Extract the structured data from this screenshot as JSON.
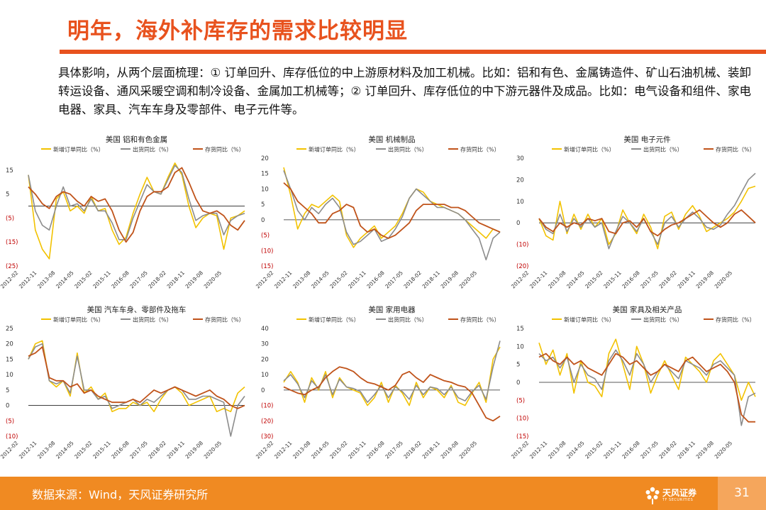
{
  "slide": {
    "title": "明年，海外补库存的需求比较明显",
    "description": "具体影响，从两个层面梳理：① 订单回升、库存低位的中上游原材料及加工机械。比如：铝和有色、金属铸造件、矿山石油机械、装卸转运设备、通风采暖空调和制冷设备、金属加工机械等；② 订单回升、库存低位的中下游元器件及成品。比如：电气设备和组件、家电电器、家具、汽车车身及零部件、电子元件等。",
    "source": "数据来源：Wind，天风证券研究所",
    "logo_text": "天风证券",
    "logo_sub": "TF SECURITIES",
    "page_number": "31"
  },
  "colors": {
    "accent": "#E8521E",
    "footer": "#F08A22",
    "orders": "#F2C200",
    "shipments": "#8C8C8C",
    "inventory": "#C0531A",
    "negative_tick": "#C00000"
  },
  "legend_labels": [
    "新增订单同比（%）",
    "出货同比（%）",
    "存货同比（%）"
  ],
  "x_tick_labels": [
    "2012-02",
    "2012-11",
    "2013-08",
    "2014-05",
    "2015-02",
    "2015-11",
    "2016-08",
    "2017-05",
    "2018-02",
    "2018-11",
    "2019-08",
    "2020-05"
  ],
  "chart_data": [
    {
      "type": "line",
      "title": "美国 铝和有色金属",
      "yticks": [
        15,
        5,
        -5,
        -15,
        -25
      ],
      "ytick_labels": [
        "15",
        "5",
        "(5)",
        "(15)",
        "(25)"
      ],
      "ylim": [
        -25,
        20
      ],
      "series": [
        {
          "name": "新增订单同比（%）",
          "values": [
            13,
            -10,
            -18,
            -22,
            3,
            6,
            -2,
            0,
            -3,
            4,
            -2,
            -1,
            -10,
            -16,
            -13,
            -3,
            5,
            12,
            6,
            5,
            12,
            18,
            13,
            0,
            -9,
            -5,
            -3,
            -4,
            -18,
            -5,
            -4,
            -2
          ]
        },
        {
          "name": "出货同比（%）",
          "values": [
            13,
            -2,
            -8,
            -10,
            0,
            8,
            0,
            1,
            -2,
            3,
            -2,
            -2,
            -7,
            -14,
            -14,
            -5,
            2,
            9,
            6,
            5,
            11,
            17,
            14,
            3,
            -6,
            -4,
            -3,
            -3,
            -12,
            -6,
            -4,
            -3
          ]
        },
        {
          "name": "存货同比（%）",
          "values": [
            8,
            5,
            1,
            -1,
            4,
            6,
            5,
            2,
            0,
            4,
            2,
            3,
            -2,
            -10,
            -15,
            -11,
            -2,
            4,
            6,
            6,
            8,
            14,
            16,
            10,
            3,
            -2,
            -3,
            -2,
            -4,
            -8,
            -10,
            -6
          ]
        }
      ]
    },
    {
      "type": "line",
      "title": "美国 机械制品",
      "yticks": [
        20,
        15,
        10,
        5,
        0,
        -5,
        -10,
        -15
      ],
      "ytick_labels": [
        "20",
        "15",
        "10",
        "5",
        "0",
        "(5)",
        "(10)",
        "(15)"
      ],
      "ylim": [
        -15,
        20
      ],
      "series": [
        {
          "name": "新增订单同比（%）",
          "values": [
            17,
            8,
            -3,
            2,
            5,
            4,
            6,
            8,
            6,
            -5,
            -9,
            -6,
            -4,
            -2,
            -6,
            -4,
            -2,
            2,
            7,
            10,
            9,
            6,
            5,
            4,
            3,
            2,
            0,
            -2,
            -4,
            -6,
            -3,
            -4
          ]
        },
        {
          "name": "出货同比（%）",
          "values": [
            16,
            10,
            3,
            0,
            4,
            2,
            5,
            7,
            4,
            -4,
            -8,
            -7,
            -5,
            -3,
            -7,
            -6,
            -3,
            1,
            7,
            10,
            8,
            6,
            4,
            4,
            3,
            2,
            0,
            -3,
            -6,
            -13,
            -6,
            -4
          ]
        },
        {
          "name": "存货同比（%）",
          "values": [
            12,
            10,
            6,
            4,
            2,
            -1,
            -1,
            2,
            3,
            5,
            4,
            -2,
            -4,
            -3,
            -5,
            -6,
            -5,
            -3,
            -1,
            3,
            5,
            5,
            5,
            5,
            4,
            4,
            3,
            1,
            -1,
            -2,
            -3,
            -4
          ]
        }
      ]
    },
    {
      "type": "line",
      "title": "美国 电子元件",
      "yticks": [
        30,
        20,
        10,
        0,
        -10,
        -20
      ],
      "ytick_labels": [
        "30",
        "20",
        "10",
        "0",
        "(10)",
        "(20)"
      ],
      "ylim": [
        -20,
        30
      ],
      "series": [
        {
          "name": "新增订单同比（%）",
          "values": [
            2,
            -6,
            -8,
            10,
            -5,
            4,
            -3,
            4,
            -2,
            2,
            -10,
            -5,
            6,
            0,
            -5,
            4,
            -2,
            -12,
            3,
            5,
            -3,
            4,
            8,
            3,
            -4,
            -2,
            0,
            2,
            5,
            10,
            16,
            17
          ]
        },
        {
          "name": "出货同比（%）",
          "values": [
            2,
            -3,
            -5,
            4,
            -4,
            2,
            -2,
            2,
            -2,
            0,
            -12,
            -4,
            3,
            0,
            -4,
            2,
            -4,
            -10,
            0,
            3,
            -2,
            2,
            5,
            2,
            -2,
            -3,
            -1,
            4,
            8,
            14,
            20,
            23
          ]
        },
        {
          "name": "存货同比（%）",
          "values": [
            2,
            -2,
            -4,
            0,
            -2,
            0,
            -1,
            2,
            1,
            2,
            -4,
            -5,
            0,
            1,
            -2,
            2,
            -4,
            -6,
            -3,
            -1,
            0,
            2,
            4,
            6,
            3,
            0,
            -2,
            0,
            4,
            6,
            3,
            0
          ]
        }
      ]
    },
    {
      "type": "line",
      "title": "美国 汽车车身、零部件及拖车",
      "yticks": [
        25,
        20,
        15,
        10,
        5,
        0,
        -5,
        -10
      ],
      "ytick_labels": [
        "25",
        "20",
        "15",
        "10",
        "5",
        "0",
        "(5)",
        "(10)"
      ],
      "ylim": [
        -10,
        25
      ],
      "series": [
        {
          "name": "新增订单同比（%）",
          "values": [
            15,
            20,
            21,
            8,
            6,
            8,
            3,
            17,
            4,
            6,
            2,
            4,
            -2,
            -1,
            -1,
            1,
            0,
            1,
            -2,
            2,
            5,
            6,
            4,
            0,
            1,
            2,
            3,
            -2,
            -1,
            -2,
            4,
            6
          ]
        },
        {
          "name": "出货同比（%）",
          "values": [
            15,
            19,
            20,
            8,
            7,
            8,
            4,
            16,
            5,
            5,
            2,
            3,
            -1,
            0,
            1,
            2,
            0,
            2,
            1,
            3,
            5,
            6,
            5,
            2,
            2,
            3,
            3,
            2,
            1,
            -10,
            0,
            3
          ]
        },
        {
          "name": "存货同比（%）",
          "values": [
            16,
            17,
            19,
            9,
            8,
            8,
            6,
            7,
            4,
            5,
            3,
            2,
            1,
            1,
            1,
            2,
            1,
            3,
            5,
            4,
            5,
            6,
            5,
            4,
            3,
            4,
            5,
            3,
            2,
            0,
            -1,
            0
          ]
        }
      ]
    },
    {
      "type": "line",
      "title": "美国 家用电器",
      "yticks": [
        40,
        30,
        20,
        10,
        0,
        -10,
        -20,
        -30
      ],
      "ytick_labels": [
        "40",
        "30",
        "20",
        "10",
        "0",
        "(10)",
        "(20)",
        "(30)"
      ],
      "ylim": [
        -30,
        40
      ],
      "series": [
        {
          "name": "新增订单同比（%）",
          "values": [
            5,
            12,
            5,
            -8,
            8,
            0,
            12,
            -5,
            8,
            2,
            0,
            -2,
            -10,
            -5,
            5,
            -8,
            3,
            -2,
            -10,
            5,
            -5,
            2,
            0,
            -5,
            3,
            -8,
            -10,
            -2,
            5,
            -8,
            20,
            28
          ]
        },
        {
          "name": "出货同比（%）",
          "values": [
            6,
            10,
            4,
            -5,
            6,
            1,
            10,
            -3,
            7,
            2,
            1,
            -1,
            -8,
            -3,
            3,
            -5,
            2,
            -1,
            -6,
            3,
            -3,
            2,
            1,
            -3,
            2,
            -5,
            -7,
            -1,
            3,
            -6,
            15,
            32
          ]
        },
        {
          "name": "存货同比（%）",
          "values": [
            2,
            0,
            -2,
            -3,
            0,
            2,
            8,
            12,
            15,
            14,
            12,
            8,
            5,
            4,
            2,
            0,
            3,
            10,
            12,
            8,
            5,
            10,
            8,
            6,
            5,
            3,
            2,
            -2,
            -10,
            -18,
            -20,
            -17
          ]
        }
      ]
    },
    {
      "type": "line",
      "title": "美国 家具及相关产品",
      "yticks": [
        15,
        10,
        5,
        0,
        -5,
        -10,
        -15
      ],
      "ytick_labels": [
        "15",
        "10",
        "5",
        "0",
        "(5)",
        "(10)",
        "(15)"
      ],
      "ylim": [
        -15,
        15
      ],
      "series": [
        {
          "name": "新增订单同比（%）",
          "values": [
            11,
            5,
            9,
            2,
            8,
            -3,
            6,
            0,
            -1,
            -4,
            8,
            12,
            5,
            -2,
            10,
            5,
            -3,
            2,
            6,
            2,
            -2,
            7,
            5,
            3,
            0,
            6,
            8,
            5,
            2,
            -5,
            0,
            -4
          ]
        },
        {
          "name": "出货同比（%）",
          "values": [
            8,
            6,
            7,
            4,
            7,
            0,
            5,
            2,
            1,
            -2,
            6,
            9,
            6,
            2,
            8,
            5,
            0,
            3,
            5,
            3,
            1,
            6,
            5,
            4,
            2,
            5,
            6,
            4,
            2,
            -12,
            -4,
            -3
          ]
        },
        {
          "name": "存货同比（%）",
          "values": [
            7,
            8,
            6,
            5,
            7,
            5,
            6,
            4,
            3,
            2,
            5,
            8,
            7,
            5,
            6,
            4,
            2,
            3,
            5,
            4,
            3,
            6,
            7,
            5,
            3,
            4,
            5,
            3,
            0,
            -9,
            -11,
            -11
          ]
        }
      ]
    }
  ]
}
